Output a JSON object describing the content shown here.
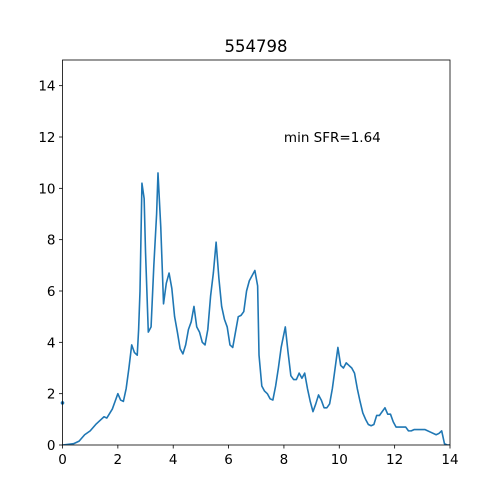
{
  "chart_data": {
    "type": "line",
    "title": "554798",
    "annotation": "min SFR=1.64",
    "xlim": [
      0,
      14
    ],
    "ylim": [
      0,
      15
    ],
    "xticks": [
      0,
      2,
      4,
      6,
      8,
      10,
      12,
      14
    ],
    "yticks": [
      0,
      2,
      4,
      6,
      8,
      10,
      12,
      14
    ],
    "series": [
      {
        "color": "#1f77b4",
        "style": "line",
        "x": [
          0,
          0.4,
          0.6,
          0.8,
          1.0,
          1.2,
          1.4,
          1.5,
          1.6,
          1.8,
          1.9,
          2.0,
          2.1,
          2.2,
          2.3,
          2.4,
          2.5,
          2.6,
          2.7,
          2.75,
          2.8,
          2.87,
          2.95,
          3.0,
          3.1,
          3.2,
          3.3,
          3.4,
          3.45,
          3.55,
          3.65,
          3.75,
          3.85,
          3.95,
          4.05,
          4.15,
          4.25,
          4.35,
          4.45,
          4.55,
          4.65,
          4.75,
          4.85,
          4.95,
          5.05,
          5.15,
          5.25,
          5.35,
          5.45,
          5.55,
          5.65,
          5.75,
          5.85,
          5.95,
          6.05,
          6.15,
          6.25,
          6.35,
          6.45,
          6.55,
          6.65,
          6.75,
          6.85,
          6.95,
          7.05,
          7.1,
          7.2,
          7.3,
          7.4,
          7.5,
          7.6,
          7.7,
          7.8,
          7.9,
          8.05,
          8.15,
          8.25,
          8.35,
          8.45,
          8.55,
          8.65,
          8.75,
          8.85,
          8.95,
          9.05,
          9.15,
          9.25,
          9.35,
          9.45,
          9.55,
          9.65,
          9.75,
          9.85,
          9.95,
          10.05,
          10.15,
          10.25,
          10.35,
          10.45,
          10.55,
          10.65,
          10.75,
          10.85,
          10.95,
          11.05,
          11.15,
          11.25,
          11.35,
          11.45,
          11.55,
          11.65,
          11.75,
          11.85,
          11.95,
          12.05,
          12.15,
          12.25,
          12.4,
          12.5,
          12.6,
          12.7,
          12.9,
          13.1,
          13.3,
          13.5,
          13.6,
          13.7,
          13.8,
          13.9,
          14.0
        ],
        "values": [
          0,
          0.05,
          0.15,
          0.4,
          0.55,
          0.8,
          1.0,
          1.1,
          1.05,
          1.4,
          1.7,
          2.0,
          1.75,
          1.7,
          2.2,
          3.0,
          3.9,
          3.6,
          3.5,
          4.5,
          6.0,
          10.2,
          9.6,
          7.5,
          4.4,
          4.6,
          7.0,
          9.0,
          10.6,
          8.5,
          5.5,
          6.3,
          6.7,
          6.1,
          5.0,
          4.4,
          3.75,
          3.55,
          3.9,
          4.5,
          4.8,
          5.4,
          4.6,
          4.4,
          4.0,
          3.9,
          4.5,
          5.8,
          6.7,
          7.9,
          6.5,
          5.4,
          4.9,
          4.6,
          3.9,
          3.8,
          4.4,
          5.0,
          5.05,
          5.2,
          6.0,
          6.4,
          6.6,
          6.8,
          6.2,
          3.5,
          2.3,
          2.1,
          2.0,
          1.8,
          1.75,
          2.3,
          3.0,
          3.8,
          4.6,
          3.6,
          2.7,
          2.55,
          2.55,
          2.8,
          2.6,
          2.8,
          2.2,
          1.7,
          1.3,
          1.6,
          1.95,
          1.75,
          1.45,
          1.45,
          1.6,
          2.2,
          3.0,
          3.8,
          3.1,
          3.0,
          3.2,
          3.1,
          3.0,
          2.8,
          2.2,
          1.7,
          1.25,
          1.0,
          0.8,
          0.75,
          0.8,
          1.15,
          1.15,
          1.3,
          1.45,
          1.2,
          1.2,
          0.9,
          0.7,
          0.7,
          0.7,
          0.7,
          0.55,
          0.55,
          0.6,
          0.6,
          0.6,
          0.5,
          0.4,
          0.45,
          0.55,
          0.05,
          0,
          0
        ]
      },
      {
        "color": "#1f77b4",
        "style": "marker",
        "x": [
          0
        ],
        "values": [
          1.64
        ]
      }
    ]
  }
}
